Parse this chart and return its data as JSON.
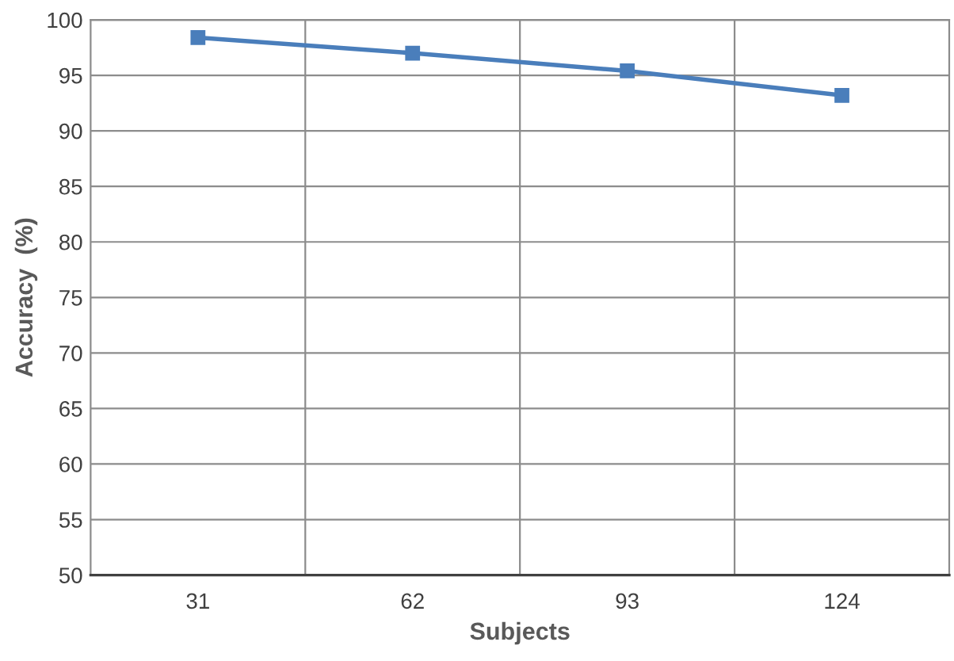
{
  "chart_data": {
    "type": "line",
    "xlabel": "Subjects",
    "ylabel": "Accuracy  (%)",
    "categories": [
      "31",
      "62",
      "93",
      "124"
    ],
    "series": [
      {
        "color": "#4a7ebb",
        "values": [
          98.4,
          97.0,
          95.4,
          93.2
        ]
      }
    ],
    "ylim": [
      50,
      100
    ],
    "yticks": [
      50,
      55,
      60,
      65,
      70,
      75,
      80,
      85,
      90,
      95,
      100
    ],
    "grid": true,
    "marker": "square",
    "line_style": "solid"
  }
}
